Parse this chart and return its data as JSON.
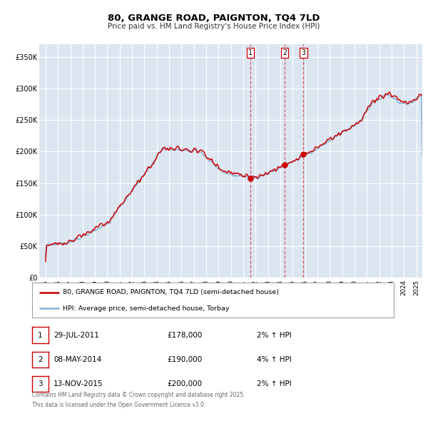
{
  "title": "80, GRANGE ROAD, PAIGNTON, TQ4 7LD",
  "subtitle": "Price paid vs. HM Land Registry's House Price Index (HPI)",
  "background_color": "#ffffff",
  "plot_bg_color": "#dce6f1",
  "grid_color": "#ffffff",
  "red_color": "#cc0000",
  "blue_color": "#89afd4",
  "legend_label_red": "80, GRANGE ROAD, PAIGNTON, TQ4 7LD (semi-detached house)",
  "legend_label_blue": "HPI: Average price, semi-detached house, Torbay",
  "transactions": [
    {
      "num": 1,
      "date_str": "29-JUL-2011",
      "date_x": 2011.57,
      "price": 178000,
      "pct": "2%",
      "direction": "↑"
    },
    {
      "num": 2,
      "date_str": "08-MAY-2014",
      "date_x": 2014.35,
      "price": 190000,
      "pct": "4%",
      "direction": "↑"
    },
    {
      "num": 3,
      "date_str": "13-NOV-2015",
      "date_x": 2015.87,
      "price": 200000,
      "pct": "2%",
      "direction": "↑"
    }
  ],
  "ylim": [
    0,
    370000
  ],
  "xlim": [
    1994.5,
    2025.5
  ],
  "yticks": [
    0,
    50000,
    100000,
    150000,
    200000,
    250000,
    300000,
    350000
  ],
  "ytick_labels": [
    "£0",
    "£50K",
    "£100K",
    "£150K",
    "£200K",
    "£250K",
    "£300K",
    "£350K"
  ],
  "xticks": [
    1995,
    1996,
    1997,
    1998,
    1999,
    2000,
    2001,
    2002,
    2003,
    2004,
    2005,
    2006,
    2007,
    2008,
    2009,
    2010,
    2011,
    2012,
    2013,
    2014,
    2015,
    2016,
    2017,
    2018,
    2019,
    2020,
    2021,
    2022,
    2023,
    2024,
    2025
  ],
  "footer_line1": "Contains HM Land Registry data © Crown copyright and database right 2025.",
  "footer_line2": "This data is licensed under the Open Government Licence v3.0."
}
